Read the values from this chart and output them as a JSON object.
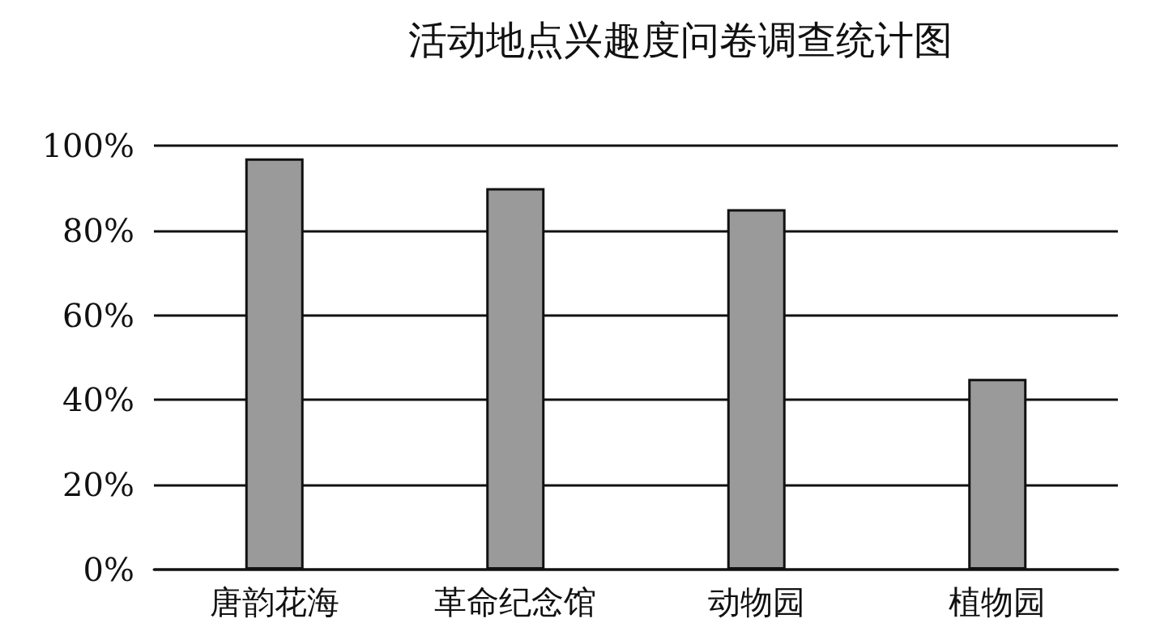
{
  "chart_data": {
    "type": "bar",
    "title": "活动地点兴趣度问卷调查统计图",
    "categories": [
      "唐韵花海",
      "革命纪念馆",
      "动物园",
      "植物园"
    ],
    "values": [
      97,
      90,
      85,
      45
    ],
    "color": "#9a9a9a",
    "ylim": [
      0,
      100
    ],
    "yticks": [
      {
        "value": 0,
        "label": "0%"
      },
      {
        "value": 20,
        "label": "20%"
      },
      {
        "value": 40,
        "label": "40%"
      },
      {
        "value": 60,
        "label": "60%"
      },
      {
        "value": 80,
        "label": "80%"
      },
      {
        "value": 100,
        "label": "100%"
      }
    ],
    "grid": "y"
  }
}
